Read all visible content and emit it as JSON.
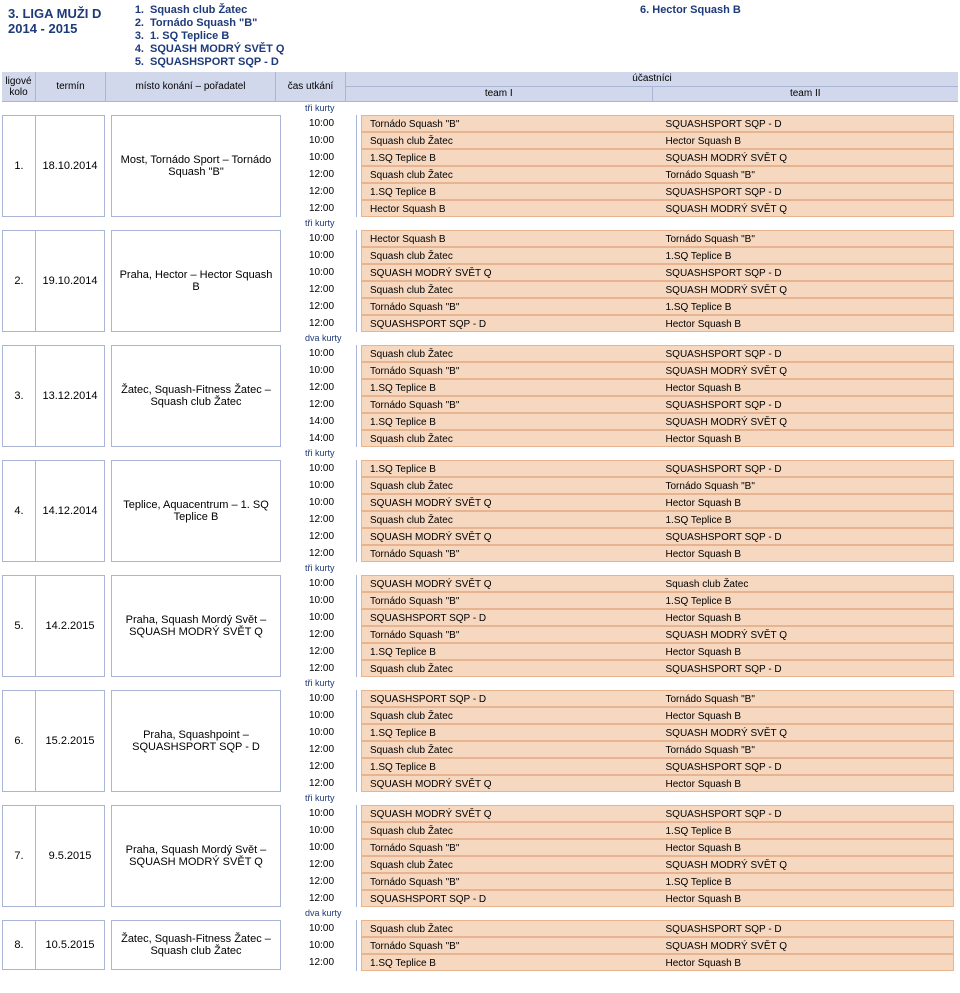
{
  "header": {
    "league_line1": "3. LIGA MUŽI D",
    "league_line2": "2014 - 2015",
    "teams": [
      {
        "num": "1.",
        "name": "Squash club Žatec"
      },
      {
        "num": "2.",
        "name": "Tornádo Squash \"B\""
      },
      {
        "num": "3.",
        "name": "1. SQ Teplice B"
      },
      {
        "num": "4.",
        "name": "SQUASH MODRÝ SVĚT Q"
      },
      {
        "num": "5.",
        "name": "SQUASHSPORT SQP - D"
      }
    ],
    "team6_num": "6.",
    "team6_name": "Hector Squash B"
  },
  "columns": {
    "kolo_l1": "ligové",
    "kolo_l2": "kolo",
    "termin": "termín",
    "misto": "místo konání – pořadatel",
    "cas": "čas utkání",
    "ucastnici": "účastníci",
    "team1": "team I",
    "team2": "team II"
  },
  "rounds": [
    {
      "kolo": "1.",
      "termin": "18.10.2014",
      "misto": "Most, Tornádo Sport – Tornádo Squash \"B\"",
      "kurty": "tři kurty",
      "matches": [
        {
          "time": "10:00",
          "t1": "Tornádo Squash \"B\"",
          "t2": "SQUASHSPORT SQP - D"
        },
        {
          "time": "10:00",
          "t1": "Squash club Žatec",
          "t2": "Hector Squash B"
        },
        {
          "time": "10:00",
          "t1": "1.SQ Teplice B",
          "t2": "SQUASH MODRÝ SVĚT Q"
        },
        {
          "time": "12:00",
          "t1": "Squash club Žatec",
          "t2": "Tornádo Squash \"B\""
        },
        {
          "time": "12:00",
          "t1": "1.SQ Teplice B",
          "t2": "SQUASHSPORT SQP - D"
        },
        {
          "time": "12:00",
          "t1": "Hector Squash B",
          "t2": "SQUASH MODRÝ SVĚT Q"
        }
      ]
    },
    {
      "kolo": "2.",
      "termin": "19.10.2014",
      "misto": "Praha, Hector – Hector Squash B",
      "kurty": "tři kurty",
      "matches": [
        {
          "time": "10:00",
          "t1": "Hector Squash B",
          "t2": "Tornádo Squash \"B\""
        },
        {
          "time": "10:00",
          "t1": "Squash club Žatec",
          "t2": "1.SQ Teplice B"
        },
        {
          "time": "10:00",
          "t1": "SQUASH MODRÝ SVĚT Q",
          "t2": "SQUASHSPORT SQP - D"
        },
        {
          "time": "12:00",
          "t1": "Squash club Žatec",
          "t2": "SQUASH MODRÝ SVĚT Q"
        },
        {
          "time": "12:00",
          "t1": "Tornádo Squash \"B\"",
          "t2": "1.SQ Teplice B"
        },
        {
          "time": "12:00",
          "t1": "SQUASHSPORT SQP - D",
          "t2": "Hector Squash B"
        }
      ]
    },
    {
      "kolo": "3.",
      "termin": "13.12.2014",
      "misto": "Žatec, Squash-Fitness Žatec – Squash club Žatec",
      "kurty": "dva kurty",
      "matches": [
        {
          "time": "10:00",
          "t1": "Squash club Žatec",
          "t2": "SQUASHSPORT SQP - D"
        },
        {
          "time": "10:00",
          "t1": "Tornádo Squash \"B\"",
          "t2": "SQUASH MODRÝ SVĚT Q"
        },
        {
          "time": "12:00",
          "t1": "1.SQ Teplice B",
          "t2": "Hector Squash B"
        },
        {
          "time": "12:00",
          "t1": "Tornádo Squash \"B\"",
          "t2": "SQUASHSPORT SQP - D"
        },
        {
          "time": "14:00",
          "t1": "1.SQ Teplice B",
          "t2": "SQUASH MODRÝ SVĚT Q"
        },
        {
          "time": "14:00",
          "t1": "Squash club Žatec",
          "t2": "Hector Squash B"
        }
      ]
    },
    {
      "kolo": "4.",
      "termin": "14.12.2014",
      "misto": "Teplice, Aquacentrum – 1. SQ Teplice B",
      "kurty": "tři kurty",
      "matches": [
        {
          "time": "10:00",
          "t1": "1.SQ Teplice B",
          "t2": "SQUASHSPORT SQP - D"
        },
        {
          "time": "10:00",
          "t1": "Squash club Žatec",
          "t2": "Tornádo Squash \"B\""
        },
        {
          "time": "10:00",
          "t1": "SQUASH MODRÝ SVĚT Q",
          "t2": "Hector Squash B"
        },
        {
          "time": "12:00",
          "t1": "Squash club Žatec",
          "t2": "1.SQ Teplice B"
        },
        {
          "time": "12:00",
          "t1": "SQUASH MODRÝ SVĚT Q",
          "t2": "SQUASHSPORT SQP - D"
        },
        {
          "time": "12:00",
          "t1": "Tornádo Squash \"B\"",
          "t2": "Hector Squash B"
        }
      ]
    },
    {
      "kolo": "5.",
      "termin": "14.2.2015",
      "misto": "Praha, Squash Mordý Svět – SQUASH MODRÝ SVĚT Q",
      "kurty": "tři kurty",
      "matches": [
        {
          "time": "10:00",
          "t1": "SQUASH MODRÝ SVĚT Q",
          "t2": "Squash club Žatec"
        },
        {
          "time": "10:00",
          "t1": "Tornádo Squash \"B\"",
          "t2": "1.SQ Teplice B"
        },
        {
          "time": "10:00",
          "t1": "SQUASHSPORT SQP - D",
          "t2": "Hector Squash B"
        },
        {
          "time": "12:00",
          "t1": "Tornádo Squash \"B\"",
          "t2": "SQUASH MODRÝ SVĚT Q"
        },
        {
          "time": "12:00",
          "t1": "1.SQ Teplice B",
          "t2": "Hector Squash B"
        },
        {
          "time": "12:00",
          "t1": "Squash club Žatec",
          "t2": "SQUASHSPORT SQP - D"
        }
      ]
    },
    {
      "kolo": "6.",
      "termin": "15.2.2015",
      "misto": "Praha, Squashpoint – SQUASHSPORT SQP - D",
      "kurty": "tři kurty",
      "matches": [
        {
          "time": "10:00",
          "t1": "SQUASHSPORT SQP - D",
          "t2": "Tornádo Squash \"B\""
        },
        {
          "time": "10:00",
          "t1": "Squash club Žatec",
          "t2": "Hector Squash B"
        },
        {
          "time": "10:00",
          "t1": "1.SQ Teplice B",
          "t2": "SQUASH MODRÝ SVĚT Q"
        },
        {
          "time": "12:00",
          "t1": "Squash club Žatec",
          "t2": "Tornádo Squash \"B\""
        },
        {
          "time": "12:00",
          "t1": "1.SQ Teplice B",
          "t2": "SQUASHSPORT SQP - D"
        },
        {
          "time": "12:00",
          "t1": "SQUASH MODRÝ SVĚT Q",
          "t2": "Hector Squash B"
        }
      ]
    },
    {
      "kolo": "7.",
      "termin": "9.5.2015",
      "misto": "Praha, Squash Mordý Svět – SQUASH MODRÝ SVĚT Q",
      "kurty": "tři kurty",
      "matches": [
        {
          "time": "10:00",
          "t1": "SQUASH MODRÝ SVĚT Q",
          "t2": "SQUASHSPORT SQP - D"
        },
        {
          "time": "10:00",
          "t1": "Squash club Žatec",
          "t2": "1.SQ Teplice B"
        },
        {
          "time": "10:00",
          "t1": "Tornádo Squash \"B\"",
          "t2": "Hector Squash B"
        },
        {
          "time": "12:00",
          "t1": "Squash club Žatec",
          "t2": "SQUASH MODRÝ SVĚT Q"
        },
        {
          "time": "12:00",
          "t1": "Tornádo Squash \"B\"",
          "t2": "1.SQ Teplice B"
        },
        {
          "time": "12:00",
          "t1": "SQUASHSPORT SQP - D",
          "t2": "Hector Squash B"
        }
      ]
    },
    {
      "kolo": "8.",
      "termin": "10.5.2015",
      "misto": "Žatec, Squash-Fitness Žatec – Squash club Žatec",
      "kurty": "dva kurty",
      "partial": true,
      "matches": [
        {
          "time": "10:00",
          "t1": "Squash club Žatec",
          "t2": "SQUASHSPORT SQP - D"
        },
        {
          "time": "10:00",
          "t1": "Tornádo Squash \"B\"",
          "t2": "SQUASH MODRÝ SVĚT Q"
        },
        {
          "time": "12:00",
          "t1": "1.SQ Teplice B",
          "t2": "Hector Squash B"
        }
      ]
    }
  ]
}
